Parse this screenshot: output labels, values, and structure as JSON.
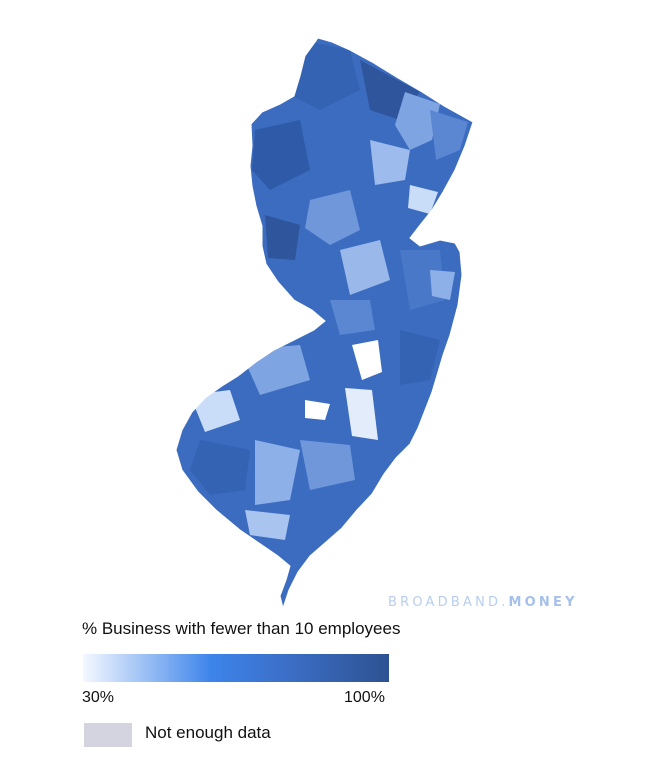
{
  "map": {
    "region": "New Jersey",
    "colors": {
      "base": "#3b6cc0",
      "light": "#8eb0e8",
      "pale": "#c9dcf8",
      "dark": "#2f559c",
      "no_data": "#d3d4df"
    }
  },
  "watermark": {
    "part1": "BROADBAND.",
    "part2": "MONEY"
  },
  "legend": {
    "title": "% Business with fewer than 10 employees",
    "min_label": "30%",
    "max_label": "100%",
    "no_data_label": "Not enough data"
  }
}
